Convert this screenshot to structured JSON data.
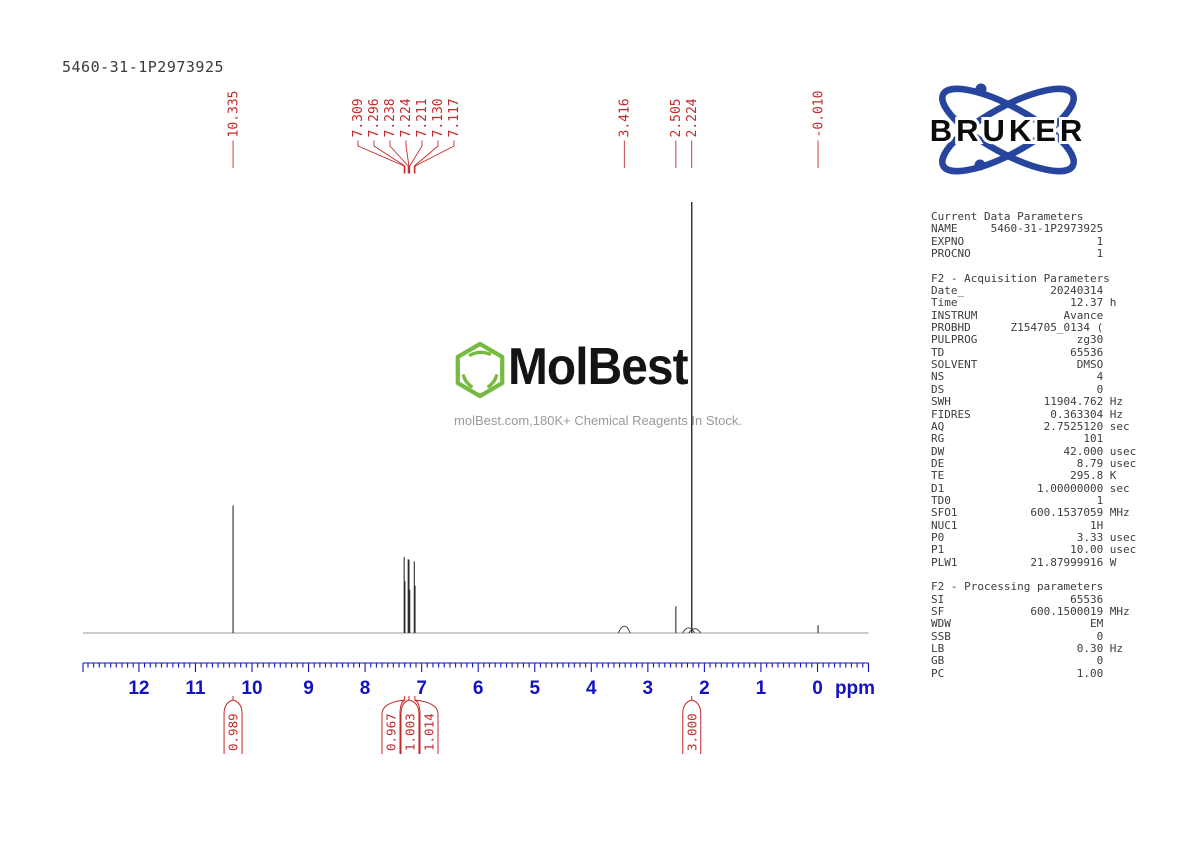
{
  "title": "5460-31-1P2973925",
  "bruker": {
    "wordmark": "BRUKER",
    "blue": "#27459e"
  },
  "watermark": {
    "wordmark": "MolBest",
    "caption": "molBest.com,180K+ Chemical Reagents In Stock.",
    "green": "#76b940"
  },
  "colors": {
    "axis_blue": "#1212c0",
    "peak_red": "#c22a2a",
    "trace_black": "#2e2e2e"
  },
  "chart_data": {
    "type": "line",
    "title": "1H NMR spectrum 5460-31-1P2973925",
    "xlabel": "ppm",
    "x_ticks": [
      12,
      11,
      10,
      9,
      8,
      7,
      6,
      5,
      4,
      3,
      2,
      1,
      0
    ],
    "xlim": [
      13.0,
      -0.9
    ],
    "grid": false,
    "peaks": [
      {
        "ppm": 10.335,
        "rel_intensity": 0.296
      },
      {
        "ppm": 7.309,
        "rel_intensity": 0.176
      },
      {
        "ppm": 7.296,
        "rel_intensity": 0.12
      },
      {
        "ppm": 7.238,
        "rel_intensity": 0.171
      },
      {
        "ppm": 7.224,
        "rel_intensity": 0.17
      },
      {
        "ppm": 7.211,
        "rel_intensity": 0.1
      },
      {
        "ppm": 7.13,
        "rel_intensity": 0.166
      },
      {
        "ppm": 7.117,
        "rel_intensity": 0.11
      },
      {
        "ppm": 3.416,
        "rel_intensity": 0.016,
        "broad": true
      },
      {
        "ppm": 2.505,
        "rel_intensity": 0.062
      },
      {
        "ppm": 2.28,
        "rel_intensity": 0.012,
        "broad": true
      },
      {
        "ppm": 2.224,
        "rel_intensity": 1.0
      },
      {
        "ppm": 2.17,
        "rel_intensity": 0.01,
        "broad": true
      },
      {
        "ppm": -0.01,
        "rel_intensity": 0.018
      }
    ],
    "peak_labels": [
      "10.335",
      "7.309",
      "7.296",
      "7.238",
      "7.224",
      "7.211",
      "7.130",
      "7.117",
      "3.416",
      "2.505",
      "2.224",
      "-0.010"
    ],
    "integrals": [
      {
        "value": "0.989",
        "ppm": 10.335
      },
      {
        "value": "0.967",
        "ppm": 7.3
      },
      {
        "value": "1.003",
        "ppm": 7.224
      },
      {
        "value": "1.014",
        "ppm": 7.12
      },
      {
        "value": "3.000",
        "ppm": 2.224
      }
    ]
  },
  "params": {
    "sections": [
      {
        "header": "Current Data Parameters",
        "rows": [
          {
            "k": "NAME",
            "v": "5460-31-1P2973925",
            "u": ""
          },
          {
            "k": "EXPNO",
            "v": "1",
            "u": ""
          },
          {
            "k": "PROCNO",
            "v": "1",
            "u": ""
          }
        ]
      },
      {
        "header": "F2 - Acquisition Parameters",
        "rows": [
          {
            "k": "Date_",
            "v": "20240314",
            "u": ""
          },
          {
            "k": "Time",
            "v": "12.37",
            "u": "h"
          },
          {
            "k": "INSTRUM",
            "v": "Avance",
            "u": ""
          },
          {
            "k": "PROBHD",
            "v": "Z154705_0134 (",
            "u": ""
          },
          {
            "k": "PULPROG",
            "v": "zg30",
            "u": ""
          },
          {
            "k": "TD",
            "v": "65536",
            "u": ""
          },
          {
            "k": "SOLVENT",
            "v": "DMSO",
            "u": ""
          },
          {
            "k": "NS",
            "v": "4",
            "u": ""
          },
          {
            "k": "DS",
            "v": "0",
            "u": ""
          },
          {
            "k": "SWH",
            "v": "11904.762",
            "u": "Hz"
          },
          {
            "k": "FIDRES",
            "v": "0.363304",
            "u": "Hz"
          },
          {
            "k": "AQ",
            "v": "2.7525120",
            "u": "sec"
          },
          {
            "k": "RG",
            "v": "101",
            "u": ""
          },
          {
            "k": "DW",
            "v": "42.000",
            "u": "usec"
          },
          {
            "k": "DE",
            "v": "8.79",
            "u": "usec"
          },
          {
            "k": "TE",
            "v": "295.8",
            "u": "K"
          },
          {
            "k": "D1",
            "v": "1.00000000",
            "u": "sec"
          },
          {
            "k": "TD0",
            "v": "1",
            "u": ""
          },
          {
            "k": "SFO1",
            "v": "600.1537059",
            "u": "MHz"
          },
          {
            "k": "NUC1",
            "v": "1H",
            "u": ""
          },
          {
            "k": "P0",
            "v": "3.33",
            "u": "usec"
          },
          {
            "k": "P1",
            "v": "10.00",
            "u": "usec"
          },
          {
            "k": "PLW1",
            "v": "21.87999916",
            "u": "W"
          }
        ]
      },
      {
        "header": "F2 - Processing parameters",
        "rows": [
          {
            "k": "SI",
            "v": "65536",
            "u": ""
          },
          {
            "k": "SF",
            "v": "600.1500019",
            "u": "MHz"
          },
          {
            "k": "WDW",
            "v": "EM",
            "u": ""
          },
          {
            "k": "SSB",
            "v": "0",
            "u": ""
          },
          {
            "k": "LB",
            "v": "0.30",
            "u": "Hz"
          },
          {
            "k": "GB",
            "v": "0",
            "u": ""
          },
          {
            "k": "PC",
            "v": "1.00",
            "u": ""
          }
        ]
      }
    ]
  }
}
